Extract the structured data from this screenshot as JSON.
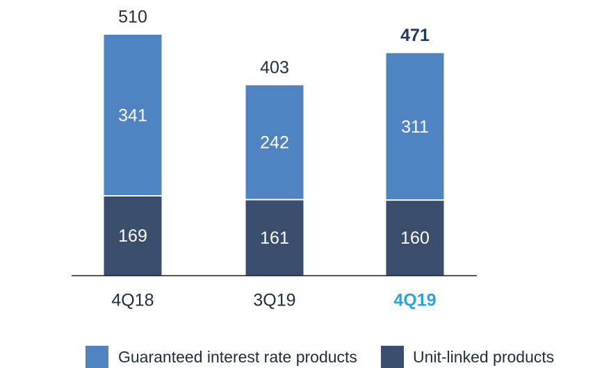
{
  "chart_data": {
    "type": "stacked_bar",
    "categories": [
      "4Q18",
      "3Q19",
      "4Q19"
    ],
    "series": [
      {
        "name": "Unit-linked products",
        "color": "#3a4d6d",
        "values": [
          169,
          161,
          160
        ]
      },
      {
        "name": "Guaranteed interest rate products",
        "color": "#4f83c1",
        "values": [
          341,
          242,
          311
        ]
      }
    ],
    "totals": [
      510,
      403,
      471
    ]
  }
}
